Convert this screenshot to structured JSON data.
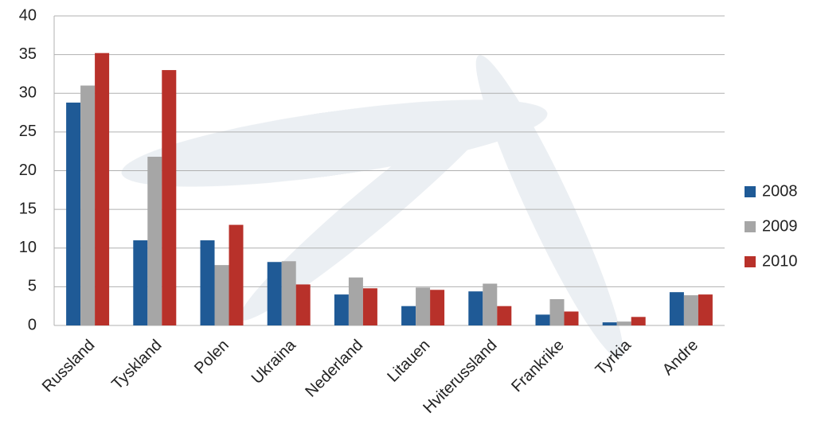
{
  "chart_data": {
    "type": "bar",
    "categories": [
      "Russland",
      "Tyskland",
      "Polen",
      "Ukraina",
      "Nederland",
      "Litauen",
      "Hviterussland",
      "Frankrike",
      "Tyrkia",
      "Andre"
    ],
    "series": [
      {
        "name": "2008",
        "color": "#1f5a96",
        "values": [
          28.8,
          11,
          11,
          8.2,
          4,
          2.5,
          4.4,
          1.4,
          0.4,
          4.3
        ]
      },
      {
        "name": "2009",
        "color": "#a6a6a6",
        "values": [
          31,
          21.8,
          7.8,
          8.3,
          6.2,
          4.9,
          5.4,
          3.4,
          0.5,
          3.9
        ]
      },
      {
        "name": "2010",
        "color": "#b8312a",
        "values": [
          35.2,
          33,
          13,
          5.3,
          4.8,
          4.6,
          2.5,
          1.8,
          1.1,
          4
        ]
      }
    ],
    "ylim": [
      0,
      40
    ],
    "yticks": [
      0,
      5,
      10,
      15,
      20,
      25,
      30,
      35,
      40
    ],
    "grid": true,
    "legend": "right"
  }
}
